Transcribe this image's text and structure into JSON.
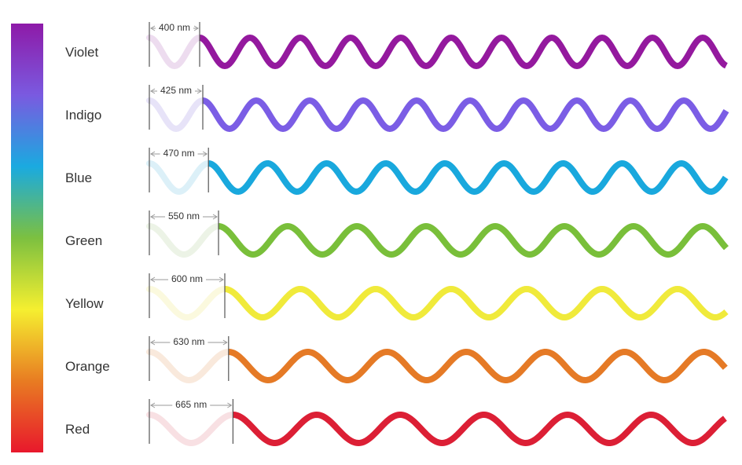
{
  "spectrum_bar": {
    "gradient": [
      "#8e1aa8",
      "#7a5ae0",
      "#1aaae0",
      "#7cc040",
      "#f5ef30",
      "#e87c22",
      "#e8182c"
    ]
  },
  "rows": [
    {
      "name": "Violet",
      "wavelength_label": "400 nm",
      "wavelength_nm": 400,
      "color": "#94199e",
      "ghost": "#eddcef"
    },
    {
      "name": "Indigo",
      "wavelength_label": "425 nm",
      "wavelength_nm": 425,
      "color": "#7b5de5",
      "ghost": "#e7e3f8"
    },
    {
      "name": "Blue",
      "wavelength_label": "470 nm",
      "wavelength_nm": 470,
      "color": "#19a8dd",
      "ghost": "#dcf0f8"
    },
    {
      "name": "Green",
      "wavelength_label": "550 nm",
      "wavelength_nm": 550,
      "color": "#79bf3a",
      "ghost": "#ecf3e6"
    },
    {
      "name": "Yellow",
      "wavelength_label": "600 nm",
      "wavelength_nm": 600,
      "color": "#f0ea3b",
      "ghost": "#fbf9de"
    },
    {
      "name": "Orange",
      "wavelength_label": "630 nm",
      "wavelength_nm": 630,
      "color": "#e57a26",
      "ghost": "#f9e9dc"
    },
    {
      "name": "Red",
      "wavelength_label": "665 nm",
      "wavelength_nm": 665,
      "color": "#dc1f35",
      "ghost": "#f8e0e3"
    }
  ]
}
